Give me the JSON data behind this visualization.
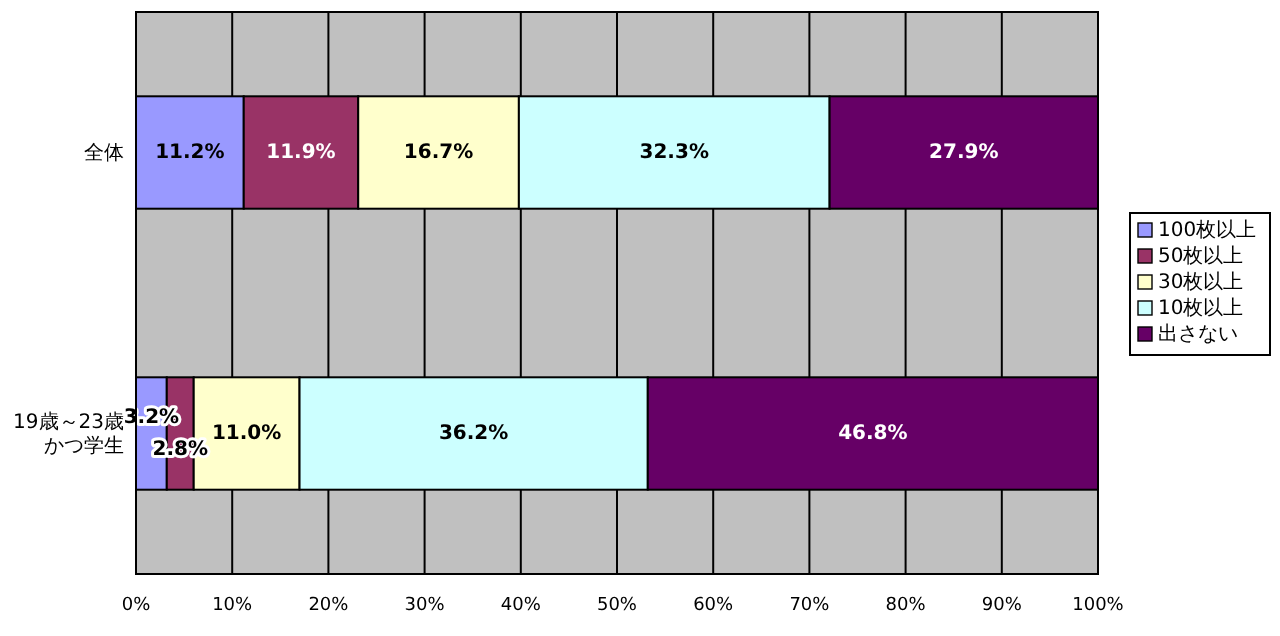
{
  "chart_data": {
    "type": "bar",
    "orientation": "horizontal",
    "stacked": true,
    "categories": [
      "全体",
      "19歳～23歳かつ学生"
    ],
    "series": [
      {
        "name": "100枚以上",
        "color": "#9999ff",
        "values": [
          11.2,
          3.2
        ],
        "value_labels": [
          "11.2%",
          "3.2%"
        ]
      },
      {
        "name": "50枚以上",
        "color": "#993366",
        "values": [
          11.9,
          2.8
        ],
        "value_labels": [
          "11.9%",
          "2.8%"
        ]
      },
      {
        "name": "30枚以上",
        "color": "#ffffcc",
        "values": [
          16.7,
          11.0
        ],
        "value_labels": [
          "16.7%",
          "11.0%"
        ]
      },
      {
        "name": "10枚以上",
        "color": "#ccffff",
        "values": [
          32.3,
          36.2
        ],
        "value_labels": [
          "32.3%",
          "36.2%"
        ]
      },
      {
        "name": "出さない",
        "color": "#660066",
        "values": [
          27.9,
          46.8
        ],
        "value_labels": [
          "27.9%",
          "46.8%"
        ]
      }
    ],
    "xlim": [
      0,
      100
    ],
    "xticks": [
      {
        "value": 0,
        "label": "0%"
      },
      {
        "value": 10,
        "label": "10%"
      },
      {
        "value": 20,
        "label": "20%"
      },
      {
        "value": 30,
        "label": "30%"
      },
      {
        "value": 40,
        "label": "40%"
      },
      {
        "value": 50,
        "label": "50%"
      },
      {
        "value": 60,
        "label": "60%"
      },
      {
        "value": 70,
        "label": "70%"
      },
      {
        "value": 80,
        "label": "80%"
      },
      {
        "value": 90,
        "label": "90%"
      },
      {
        "value": 100,
        "label": "100%"
      }
    ],
    "grid": "x",
    "legend": "right"
  }
}
